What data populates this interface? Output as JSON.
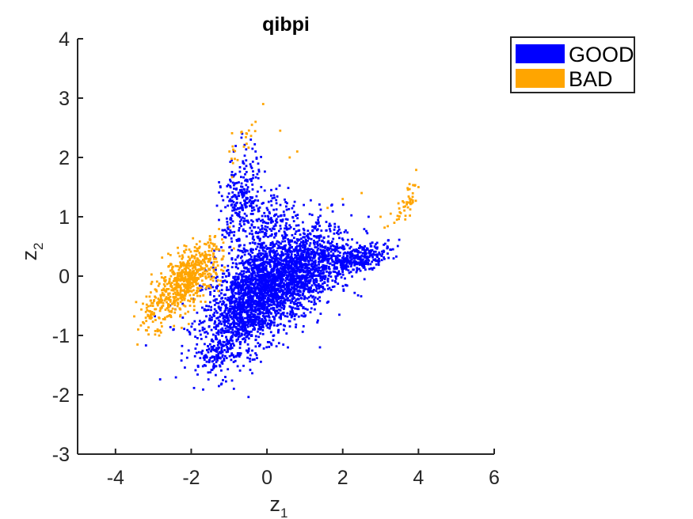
{
  "chart_data": {
    "type": "scatter",
    "title": "qibpi",
    "xlabel": "z",
    "xlabel_sub": "1",
    "ylabel": "z",
    "ylabel_sub": "2",
    "xlim": [
      -5,
      6
    ],
    "ylim": [
      -3,
      4
    ],
    "xticks": [
      -4,
      -2,
      0,
      2,
      4,
      6
    ],
    "yticks": [
      -3,
      -2,
      -1,
      0,
      1,
      2,
      3,
      4
    ],
    "grid": false,
    "legend_position": "top-right-outside",
    "colors": {
      "GOOD": "#0000ff",
      "BAD": "#ffa500"
    },
    "series": [
      {
        "name": "GOOD",
        "color": "#0000ff",
        "clusters": [
          {
            "cx": 0.0,
            "cy": -0.2,
            "sx": 0.85,
            "sy": 0.5,
            "rho": 0.55,
            "n": 1800
          },
          {
            "cx": 0.9,
            "cy": 0.1,
            "sx": 0.7,
            "sy": 0.35,
            "rho": 0.45,
            "n": 900
          },
          {
            "cx": -0.6,
            "cy": -0.6,
            "sx": 0.45,
            "sy": 0.45,
            "rho": 0.5,
            "n": 600
          },
          {
            "cx": -0.7,
            "cy": 1.2,
            "sx": 0.25,
            "sy": 0.45,
            "rho": 0.3,
            "n": 280
          },
          {
            "cx": 2.5,
            "cy": 0.3,
            "sx": 0.4,
            "sy": 0.12,
            "rho": 0.6,
            "n": 250
          },
          {
            "cx": 0.1,
            "cy": 0.9,
            "sx": 0.3,
            "sy": 0.3,
            "rho": 0.3,
            "n": 160
          },
          {
            "cx": -1.4,
            "cy": -1.3,
            "sx": 0.2,
            "sy": 0.15,
            "rho": 0.2,
            "n": 80
          }
        ],
        "extreme_points": [
          [
            -1.65,
            -1.5
          ],
          [
            -1.1,
            -1.7
          ],
          [
            -0.55,
            1.95
          ],
          [
            -0.3,
            2.1
          ],
          [
            3.2,
            0.6
          ],
          [
            1.4,
            -1.2
          ]
        ]
      },
      {
        "name": "BAD",
        "color": "#ffa500",
        "clusters": [
          {
            "cx": -2.1,
            "cy": -0.05,
            "sx": 0.45,
            "sy": 0.3,
            "rho": 0.65,
            "n": 650
          },
          {
            "cx": -3.0,
            "cy": -0.65,
            "sx": 0.2,
            "sy": 0.2,
            "rho": 0.3,
            "n": 60
          },
          {
            "cx": 3.7,
            "cy": 1.2,
            "sx": 0.2,
            "sy": 0.2,
            "rho": 0.8,
            "n": 45
          },
          {
            "cx": -0.7,
            "cy": 2.2,
            "sx": 0.25,
            "sy": 0.25,
            "rho": 0.6,
            "n": 22
          }
        ],
        "extreme_points": [
          [
            -0.1,
            2.9
          ],
          [
            -0.3,
            2.6
          ],
          [
            0.35,
            2.45
          ],
          [
            0.6,
            2.0
          ],
          [
            0.8,
            2.1
          ],
          [
            2.0,
            1.3
          ],
          [
            1.6,
            1.15
          ],
          [
            2.5,
            1.4
          ],
          [
            3.0,
            1.0
          ],
          [
            4.0,
            1.5
          ],
          [
            -3.4,
            -0.9
          ],
          [
            -2.8,
            -0.95
          ]
        ]
      }
    ]
  }
}
